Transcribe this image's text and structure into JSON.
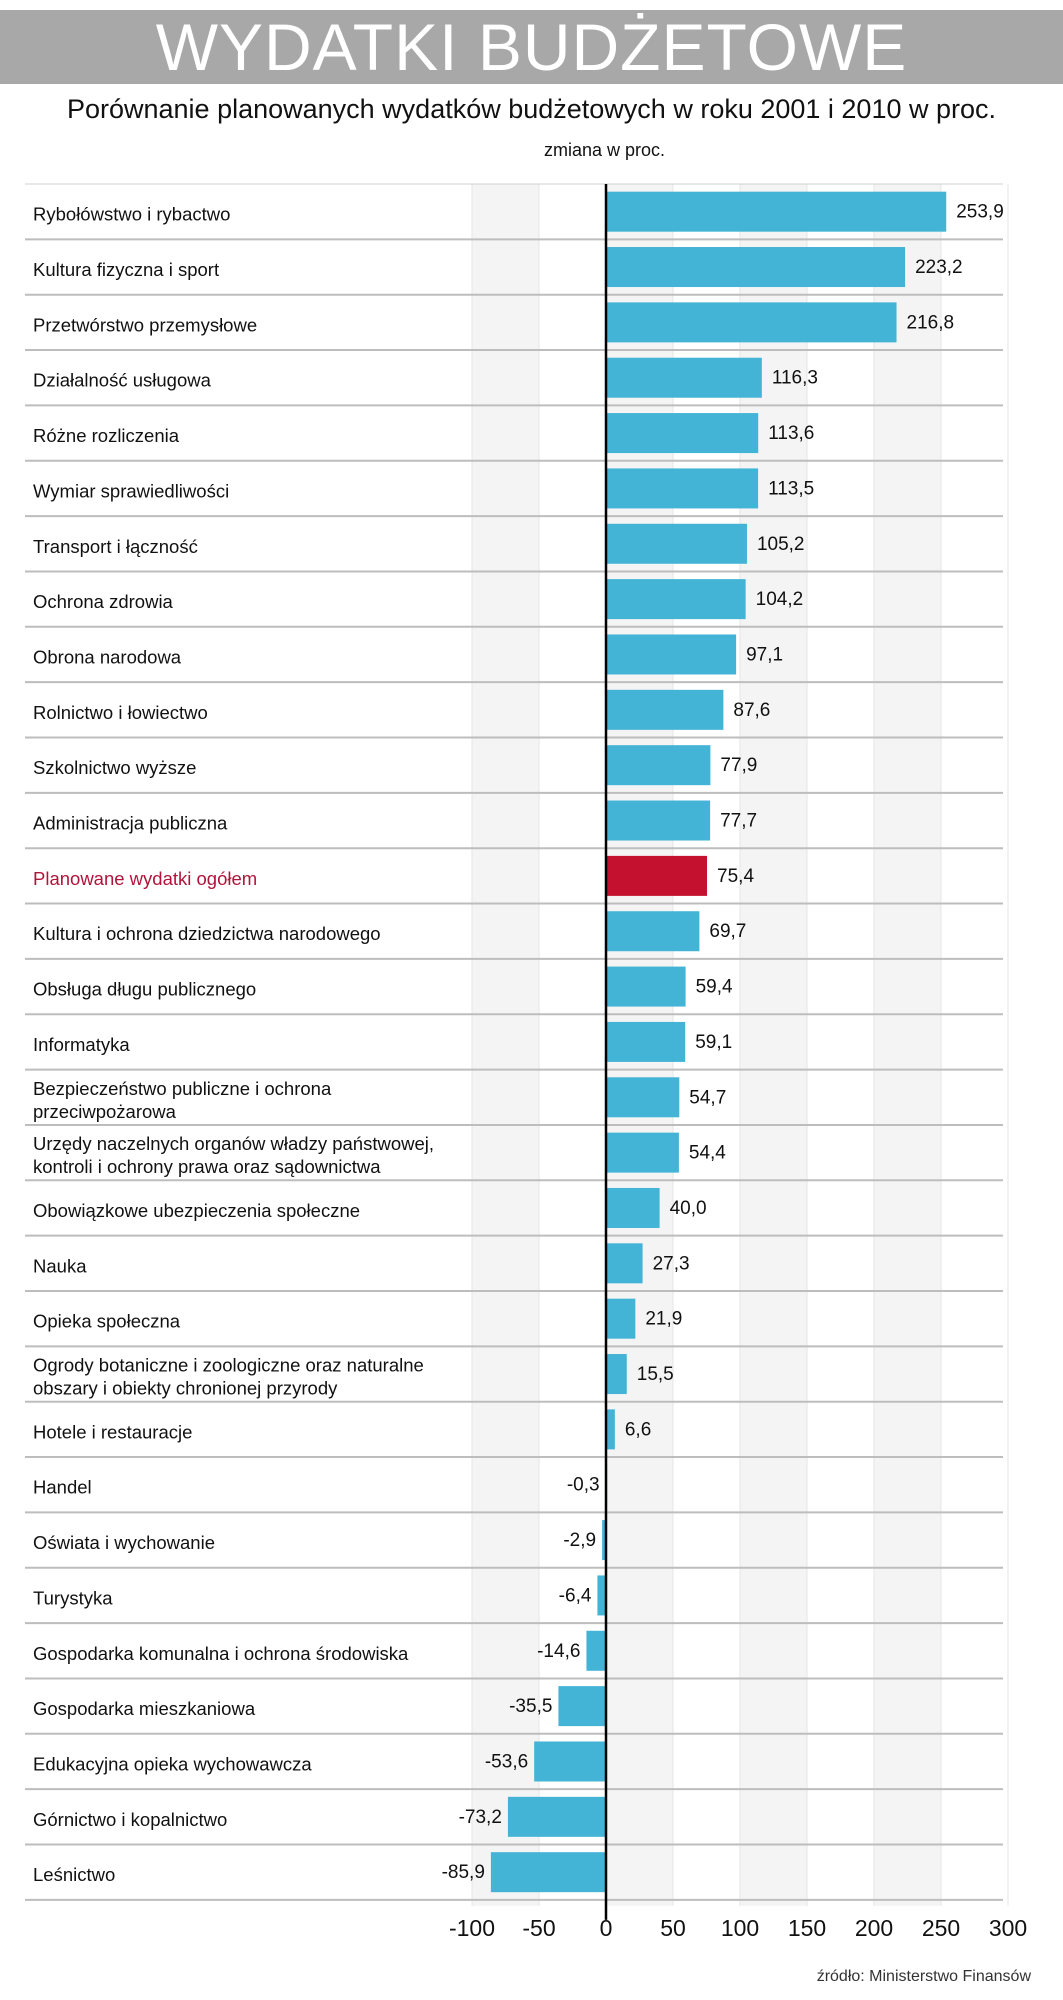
{
  "header": {
    "title": "WYDATKI BUDŻETOWE"
  },
  "subtitle": "Porównanie planowanych wydatków budżetowych w roku 2001 i 2010 w proc.",
  "unit_note": "zmiana w proc.",
  "source": "źródło: Ministerstwo Finansów",
  "colors": {
    "bar": "#43b3d6",
    "highlight_bar": "#c4112f",
    "highlight_label": "#b0143a",
    "stripe": "#f4f4f4",
    "row_line": "#bdbdbd",
    "axis": "#000000"
  },
  "chart_data": {
    "type": "bar",
    "orientation": "horizontal",
    "title": "Porównanie planowanych wydatków budżetowych w roku 2001 i 2010 w proc.",
    "xlabel": "zmiana w proc.",
    "xlim": [
      -100,
      300
    ],
    "xticks": [
      "-100",
      "-50",
      "0",
      "50",
      "100",
      "150",
      "200",
      "250",
      "300"
    ],
    "xtick_values": [
      -100,
      -50,
      0,
      50,
      100,
      150,
      200,
      250,
      300
    ],
    "categories": [
      [
        "Rybołówstwo i rybactwo"
      ],
      [
        "Kultura fizyczna i sport"
      ],
      [
        "Przetwórstwo przemysłowe"
      ],
      [
        "Działalność usługowa"
      ],
      [
        "Różne rozliczenia"
      ],
      [
        "Wymiar sprawiedliwości"
      ],
      [
        "Transport i łączność"
      ],
      [
        "Ochrona zdrowia"
      ],
      [
        "Obrona narodowa"
      ],
      [
        "Rolnictwo i łowiectwo"
      ],
      [
        "Szkolnictwo wyższe"
      ],
      [
        "Administracja publiczna"
      ],
      [
        "Planowane wydatki ogółem"
      ],
      [
        "Kultura i ochrona dziedzictwa narodowego"
      ],
      [
        "Obsługa długu publicznego"
      ],
      [
        "Informatyka"
      ],
      [
        "Bezpieczeństwo publiczne i ochrona",
        "przeciwpożarowa"
      ],
      [
        "Urzędy naczelnych organów władzy państwowej,",
        "kontroli i ochrony prawa oraz sądownictwa"
      ],
      [
        "Obowiązkowe ubezpieczenia społeczne"
      ],
      [
        "Nauka"
      ],
      [
        "Opieka społeczna"
      ],
      [
        "Ogrody botaniczne i zoologiczne oraz naturalne",
        "obszary i obiekty chronionej przyrody"
      ],
      [
        "Hotele i restauracje"
      ],
      [
        "Handel"
      ],
      [
        "Oświata i wychowanie"
      ],
      [
        "Turystyka"
      ],
      [
        "Gospodarka komunalna i ochrona środowiska"
      ],
      [
        "Gospodarka mieszkaniowa"
      ],
      [
        "Edukacyjna opieka wychowawcza"
      ],
      [
        "Górnictwo i kopalnictwo"
      ],
      [
        "Leśnictwo"
      ]
    ],
    "values": [
      253.9,
      223.2,
      216.8,
      116.3,
      113.6,
      113.5,
      105.2,
      104.2,
      97.1,
      87.6,
      77.9,
      77.7,
      75.4,
      69.7,
      59.4,
      59.1,
      54.7,
      54.4,
      40.0,
      27.3,
      21.9,
      15.5,
      6.6,
      -0.3,
      -2.9,
      -6.4,
      -14.6,
      -35.5,
      -53.6,
      -73.2,
      -85.9
    ],
    "value_labels": [
      "253,9",
      "223,2",
      "216,8",
      "116,3",
      "113,6",
      "113,5",
      "105,2",
      "104,2",
      "97,1",
      "87,6",
      "77,9",
      "77,7",
      "75,4",
      "69,7",
      "59,4",
      "59,1",
      "54,7",
      "54,4",
      "40,0",
      "27,3",
      "21,9",
      "15,5",
      "6,6",
      "-0,3",
      "-2,9",
      "-6,4",
      "-14,6",
      "-35,5",
      "-53,6",
      "-73,2",
      "-85,9"
    ],
    "highlight_index": 12,
    "grid": true
  }
}
